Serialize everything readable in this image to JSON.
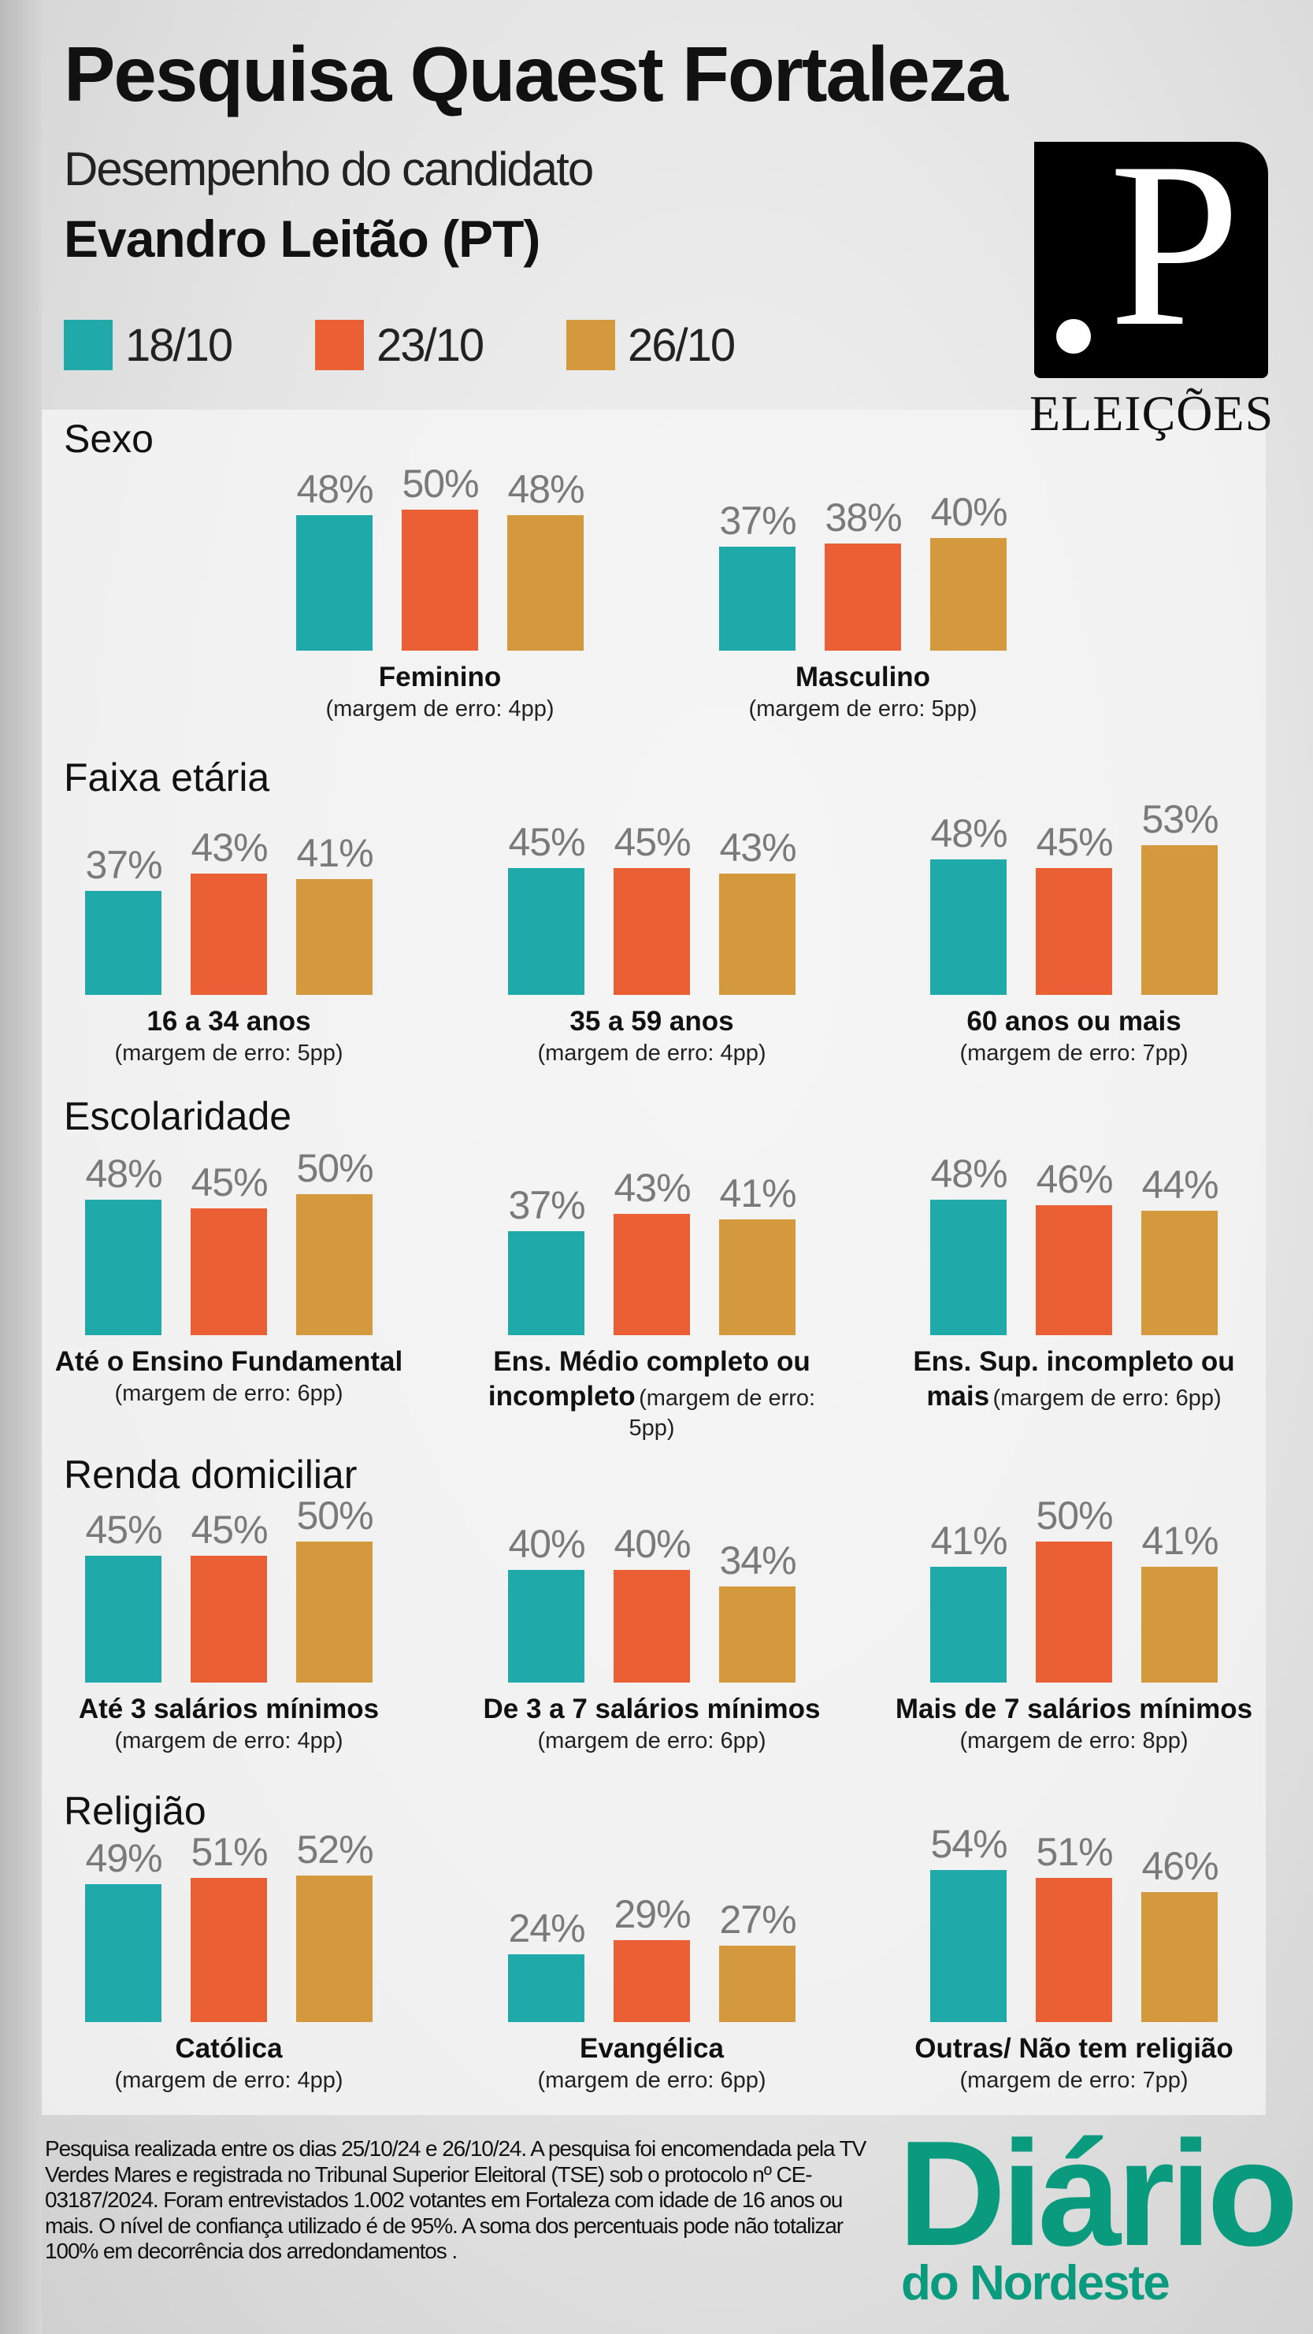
{
  "header": {
    "title": "Pesquisa Quaest Fortaleza",
    "subtitle": "Desempenho do candidato",
    "candidate": "Evandro Leitão (PT)"
  },
  "logo": {
    "letter": "P",
    "caption": "ELEIÇÕES"
  },
  "chart_data": {
    "type": "bar",
    "unit": "%",
    "series": [
      {
        "name": "18/10",
        "color": "#1fa9a8"
      },
      {
        "name": "23/10",
        "color": "#ea5f34"
      },
      {
        "name": "26/10",
        "color": "#d4993c"
      }
    ],
    "sections": [
      {
        "title": "Sexo",
        "groups": [
          {
            "label": "Feminino",
            "margin": "(margem de erro: 4pp)",
            "values": [
              48,
              50,
              48
            ]
          },
          {
            "label": "Masculino",
            "margin": "(margem de erro: 5pp)",
            "values": [
              37,
              38,
              40
            ]
          }
        ]
      },
      {
        "title": "Faixa etária",
        "groups": [
          {
            "label": "16 a 34 anos",
            "margin": "(margem de erro: 5pp)",
            "values": [
              37,
              43,
              41
            ]
          },
          {
            "label": "35 a 59 anos",
            "margin": "(margem de erro: 4pp)",
            "values": [
              45,
              45,
              43
            ]
          },
          {
            "label": "60 anos ou mais",
            "margin": "(margem de erro: 7pp)",
            "values": [
              48,
              45,
              53
            ]
          }
        ]
      },
      {
        "title": "Escolaridade",
        "groups": [
          {
            "label": "Até o Ensino Fundamental",
            "margin": "(margem de erro: 6pp)",
            "values": [
              48,
              45,
              50
            ]
          },
          {
            "label": "Ens. Médio completo ou incompleto",
            "margin": "(margem de erro: 5pp)",
            "values": [
              37,
              43,
              41
            ]
          },
          {
            "label": "Ens. Sup. incompleto ou mais",
            "margin": "(margem de erro: 6pp)",
            "values": [
              48,
              46,
              44
            ]
          }
        ]
      },
      {
        "title": "Renda domiciliar",
        "groups": [
          {
            "label": "Até 3 salários mínimos",
            "margin": "(margem de erro: 4pp)",
            "values": [
              45,
              45,
              50
            ]
          },
          {
            "label": "De 3 a 7 salários mínimos",
            "margin": "(margem de erro: 6pp)",
            "values": [
              40,
              40,
              34
            ]
          },
          {
            "label": "Mais de 7 salários mínimos",
            "margin": "(margem de erro: 8pp)",
            "values": [
              41,
              50,
              41
            ]
          }
        ]
      },
      {
        "title": "Religião",
        "groups": [
          {
            "label": "Católica",
            "margin": "(margem de erro: 4pp)",
            "values": [
              49,
              51,
              52
            ]
          },
          {
            "label": "Evangélica",
            "margin": "(margem de erro: 6pp)",
            "values": [
              24,
              29,
              27
            ]
          },
          {
            "label": "Outras/ Não tem religião",
            "margin": "(margem de erro: 7pp)",
            "values": [
              54,
              51,
              46
            ]
          }
        ]
      }
    ]
  },
  "footnote": "Pesquisa realizada entre os dias 25/10/24 e  26/10/24. A pesquisa foi encomendada pela TV Verdes Mares e registrada no Tribunal Superior Eleitoral (TSE) sob o protocolo nº CE-03187/2024. Foram entrevistados 1.002 votantes em Fortaleza com idade de 16 anos ou mais. O nível de confiança utilizado é de 95%. A soma dos percentuais pode não totalizar 100% em decorrência dos arredondamentos .",
  "brand": {
    "line1": "Diário",
    "line2": "do Nordeste",
    "color": "#0a9b7e"
  }
}
